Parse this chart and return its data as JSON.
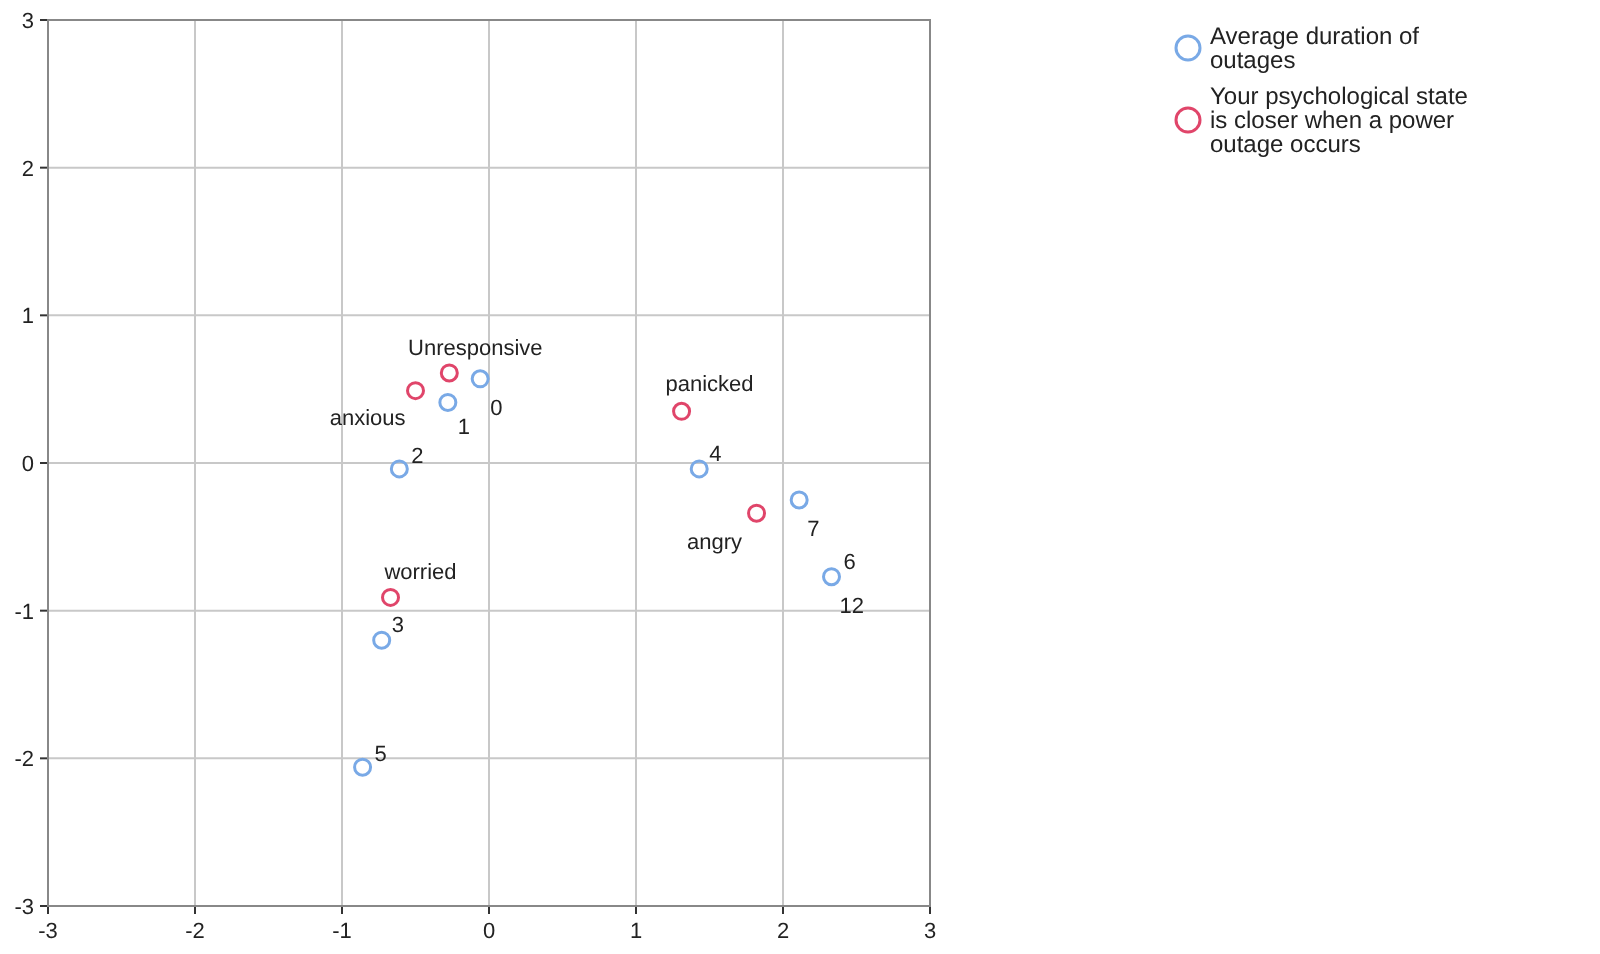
{
  "chart_data": {
    "type": "scatter",
    "xlim": [
      -3,
      3
    ],
    "ylim": [
      -3,
      3
    ],
    "xticks": [
      -3,
      -2,
      -1,
      0,
      1,
      2,
      3
    ],
    "yticks": [
      -3,
      -2,
      -1,
      0,
      1,
      2,
      3
    ],
    "grid": true,
    "marker": "circle",
    "legend": "top right",
    "series": [
      {
        "name": "Average duration of outages",
        "color": "#79a9e6",
        "x": [
          -0.06,
          -0.28,
          -0.61,
          -0.73,
          1.43,
          -0.86,
          2.33,
          2.11
        ],
        "values": [
          0.57,
          0.41,
          -0.04,
          -1.2,
          -0.04,
          -2.06,
          -0.77,
          -0.25
        ]
      },
      {
        "name": "Your psychological state is closer when a power outage occurs",
        "color": "#e0456a",
        "x": [
          -0.27,
          -0.5,
          1.31,
          1.82,
          -0.67
        ],
        "values": [
          0.61,
          0.49,
          0.35,
          -0.34,
          -0.91
        ]
      }
    ],
    "annotations": [
      {
        "text": "0",
        "x": -0.06,
        "y": 0.57
      },
      {
        "text": "1",
        "x": -0.28,
        "y": 0.41
      },
      {
        "text": "2",
        "x": -0.61,
        "y": -0.04
      },
      {
        "text": "3",
        "x": -0.73,
        "y": -1.2
      },
      {
        "text": "4",
        "x": 1.43,
        "y": -0.04
      },
      {
        "text": "5",
        "x": -0.86,
        "y": -2.06
      },
      {
        "text": "6",
        "x": 2.33,
        "y": -0.77
      },
      {
        "text": "7",
        "x": 2.11,
        "y": -0.25
      },
      {
        "text": "12",
        "x": 2.33,
        "y": -0.77
      },
      {
        "text": "Unresponsive",
        "x": -0.27,
        "y": 0.61
      },
      {
        "text": "anxious",
        "x": -0.5,
        "y": 0.49
      },
      {
        "text": "panicked",
        "x": 1.31,
        "y": 0.35
      },
      {
        "text": "angry",
        "x": 1.82,
        "y": -0.34
      },
      {
        "text": "worried",
        "x": -0.67,
        "y": -0.91
      }
    ]
  }
}
